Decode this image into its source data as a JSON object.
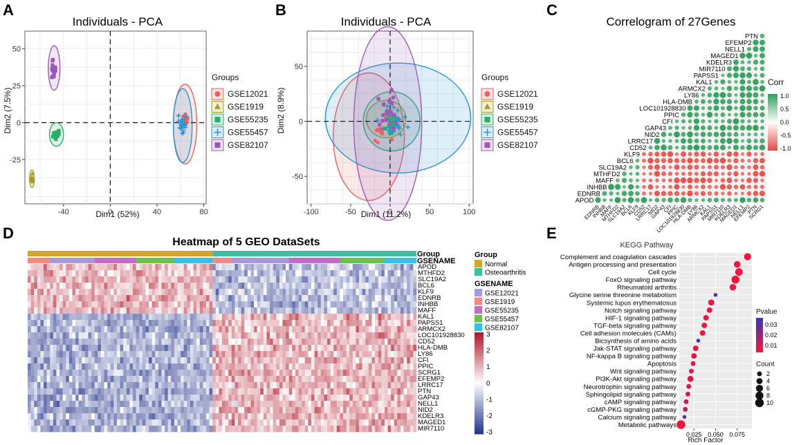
{
  "panels": {
    "a": "A",
    "b": "B",
    "c": "C",
    "d": "D",
    "e": "E"
  },
  "pca_palette": [
    "#e8625f",
    "#a39b27",
    "#27ae6b",
    "#2a96d6",
    "#9b59b6"
  ],
  "chart_data": [
    {
      "type": "scatter",
      "panel": "A",
      "title": "Individuals - PCA",
      "xlabel": "Dim1 (52%)",
      "ylabel": "Dim2 (7.5%)",
      "xlim": [
        -73,
        82
      ],
      "ylim": [
        -55,
        62
      ],
      "xticks": [
        "-40",
        "0",
        "40",
        "80"
      ],
      "xtick_values": [
        -40,
        0,
        40,
        80
      ],
      "yticks": [
        "50",
        "25",
        "0",
        "-25"
      ],
      "ytick_values": [
        50,
        25,
        0,
        -25
      ],
      "legend_title": "Groups",
      "series": [
        {
          "name": "GSE12021",
          "marker": "circle",
          "center": [
            65,
            3
          ],
          "spread": [
            4,
            9
          ],
          "n": 10
        },
        {
          "name": "GSE1919",
          "marker": "triangle",
          "center": [
            -67,
            -38
          ],
          "spread": [
            1,
            4
          ],
          "n": 8
        },
        {
          "name": "GSE55235",
          "marker": "square",
          "center": [
            -46,
            -8
          ],
          "spread": [
            4,
            4
          ],
          "n": 16
        },
        {
          "name": "GSE55457",
          "marker": "plus",
          "center": [
            62,
            -1
          ],
          "spread": [
            5,
            11
          ],
          "n": 20
        },
        {
          "name": "GSE82107",
          "marker": "square",
          "center": [
            -48,
            36
          ],
          "spread": [
            3,
            9
          ],
          "n": 12
        }
      ],
      "ellipses": [
        {
          "group": "GSE12021",
          "center": [
            64,
            -1
          ],
          "radius": [
            10,
            27
          ]
        },
        {
          "group": "GSE1919",
          "center": [
            -67,
            -38
          ],
          "radius": [
            2,
            6
          ]
        },
        {
          "group": "GSE55235",
          "center": [
            -46,
            -8
          ],
          "radius": [
            6,
            8
          ]
        },
        {
          "group": "GSE55457",
          "center": [
            62,
            -2
          ],
          "radius": [
            8,
            25
          ]
        },
        {
          "group": "GSE82107",
          "center": [
            -48,
            37
          ],
          "radius": [
            5,
            15
          ]
        }
      ]
    },
    {
      "type": "scatter",
      "panel": "B",
      "title": "Individuals - PCA",
      "xlabel": "Dim1 (11.2%)",
      "ylabel": "Dim2 (8.9%)",
      "xlim": [
        -105,
        105
      ],
      "ylim": [
        -75,
        82
      ],
      "xticks": [
        "-100",
        "-50",
        "0",
        "50",
        "100"
      ],
      "xtick_values": [
        -100,
        -50,
        0,
        50,
        100
      ],
      "yticks": [
        "50",
        "0",
        "-50"
      ],
      "ytick_values": [
        50,
        0,
        -50
      ],
      "legend_title": "Groups",
      "series": [
        {
          "name": "GSE12021",
          "marker": "circle",
          "center": [
            -12,
            -8
          ],
          "spread": [
            18,
            22
          ],
          "n": 10
        },
        {
          "name": "GSE1919",
          "marker": "triangle",
          "center": [
            0,
            4
          ],
          "spread": [
            12,
            10
          ],
          "n": 10
        },
        {
          "name": "GSE55235",
          "marker": "square",
          "center": [
            3,
            -2
          ],
          "spread": [
            14,
            12
          ],
          "n": 20
        },
        {
          "name": "GSE55457",
          "marker": "plus",
          "center": [
            5,
            0
          ],
          "spread": [
            32,
            20
          ],
          "n": 22
        },
        {
          "name": "GSE82107",
          "marker": "square",
          "center": [
            -2,
            8
          ],
          "spread": [
            16,
            26
          ],
          "n": 18
        }
      ],
      "ellipses": [
        {
          "group": "GSE12021",
          "center": [
            -27,
            -14
          ],
          "radius": [
            45,
            58
          ]
        },
        {
          "group": "GSE1919",
          "center": [
            -5,
            2
          ],
          "radius": [
            25,
            17
          ]
        },
        {
          "group": "GSE55235",
          "center": [
            2,
            0
          ],
          "radius": [
            36,
            27
          ]
        },
        {
          "group": "GSE55457",
          "center": [
            10,
            3
          ],
          "radius": [
            92,
            50
          ]
        },
        {
          "group": "GSE82107",
          "center": [
            -3,
            -2
          ],
          "radius": [
            43,
            88
          ]
        }
      ]
    },
    {
      "type": "heatmap",
      "panel": "C",
      "title": "Correlogram of 27Genes",
      "genes_top_to_bottom": [
        "PTN",
        "EFEMP2",
        "NELL1",
        "MAGED1",
        "KDELR3",
        "MIR7110",
        "PAPSS1",
        "KAL1",
        "ARMCX2",
        "LY86",
        "HLA-DMB",
        "LOC101928830",
        "PPIC",
        "CFI",
        "GAP43",
        "NID2",
        "LRRC17",
        "CD52",
        "KLF9",
        "BCL6",
        "SLC19A2",
        "MTHFD2",
        "MAFF",
        "INHBB",
        "EDNRB",
        "APOD"
      ],
      "genes_bottom_axis": [
        "EDNRB",
        "INHBB",
        "MAFF",
        "MTHFD2",
        "SLC19A2",
        "BCL6",
        "KLF9",
        "CD52",
        "LRRC17",
        "NID2",
        "GAP43",
        "CFI",
        "PPIC",
        "LOC101928830",
        "HLA-DMB",
        "LY86",
        "ARMCX2",
        "KAL1",
        "PAPSS1",
        "MIR7110",
        "KDELR3",
        "MAGED1",
        "NELL1",
        "EFEMP2",
        "PTN",
        "SCRG1"
      ],
      "legend_title": "Corr",
      "legend_ticks": [
        "1.0",
        "0.5",
        "0.0",
        "-0.5",
        "-1.0"
      ],
      "colors": {
        "pos": "#2f9e5a",
        "neg": "#e64b43",
        "mid": "#ffffff"
      },
      "note": "upper block green (positive), lower-right block red (negative), APOD row green"
    },
    {
      "type": "heatmap",
      "panel": "D",
      "title": "Heatmap of 5 GEO DataSets",
      "annotation_labels": [
        "Group",
        "GSENAME"
      ],
      "genes": [
        "APOD",
        "MTHFD2",
        "SLC19A2",
        "BCL6",
        "KLF9",
        "EDNRB",
        "INHBB",
        "MAFF",
        "KAL1",
        "PAPSS1",
        "ARMCX2",
        "LOC101928830",
        "CD52",
        "HLA-DMB",
        "LY86",
        "CFI",
        "PPIC",
        "SCRG1",
        "EFEMP2",
        "LRRC17",
        "PTN",
        "GAP43",
        "NELL1",
        "NID2",
        "KDELR3",
        "MAGED1",
        "MIR7110"
      ],
      "legend_group_title": "Group",
      "legend_group": [
        {
          "name": "Normal",
          "color": "#d4a42f"
        },
        {
          "name": "Osteoarthritis",
          "color": "#3fbfa0"
        }
      ],
      "legend_gse_title": "GSENAME",
      "legend_gse": [
        {
          "name": "GSE12021",
          "color": "#a79ad8"
        },
        {
          "name": "GSE1919",
          "color": "#f08a85"
        },
        {
          "name": "GSE55235",
          "color": "#c46bc9"
        },
        {
          "name": "GSE55457",
          "color": "#6ec04e"
        },
        {
          "name": "GSE82107",
          "color": "#37c1e8"
        }
      ],
      "scale_ticks": [
        "3",
        "2",
        "1",
        "0",
        "-1",
        "-2",
        "-3"
      ],
      "group_split": {
        "normal": 58,
        "oa": 64
      },
      "gse_blocks_normal": [
        [
          "GSE1919",
          7
        ],
        [
          "GSE12021",
          14
        ],
        [
          "GSE55235",
          13
        ],
        [
          "GSE55457",
          12
        ],
        [
          "GSE82107",
          12
        ]
      ],
      "gse_blocks_oa": [
        [
          "GSE1919",
          6
        ],
        [
          "GSE12021",
          18
        ],
        [
          "GSE55235",
          16
        ],
        [
          "GSE55457",
          14
        ],
        [
          "GSE82107",
          10
        ]
      ]
    },
    {
      "type": "scatter",
      "panel": "E",
      "title": "KEGG Pathway",
      "xlabel": "Rich Factor",
      "xlim": [
        0.008,
        0.092
      ],
      "xticks": [
        "0.025",
        "0.050",
        "0.075"
      ],
      "xtick_values": [
        0.025,
        0.05,
        0.075
      ],
      "pathways": [
        "Complement and coagulation cascades",
        "Antigen processing and presentation",
        "Cell cycle",
        "FoxO signaling pathway",
        "Rheumatoid arthritis",
        "Glycine serine threonine metabolism",
        "Systemic lupus erythematosus",
        "Notch signaling pathway",
        "HIF-1 signaling pathway",
        "TGF-beta signaling pathway",
        "Cell adhesion molecules (CAMs)",
        "Bicsynthesis of amino acids",
        "Jak-STAT signaling pathway",
        "NF-kappa B signaling pathway",
        "Apoptosis",
        "Wnt signaling pathway",
        "PI3K-Akt signaling pathway",
        "Neurotrophin signaling pathway",
        "Sphingolipid signaling pathway",
        "cAMP signaling pathway",
        "cGMP-PKG signaling pathway",
        "Calcium signaling pathway",
        "Metabolic pathways"
      ],
      "rich_factor": [
        0.087,
        0.075,
        0.077,
        0.073,
        0.07,
        0.05,
        0.045,
        0.043,
        0.039,
        0.037,
        0.035,
        0.03,
        0.027,
        0.025,
        0.024,
        0.022,
        0.021,
        0.019,
        0.018,
        0.016,
        0.015,
        0.014,
        0.01
      ],
      "count": [
        6,
        5,
        7,
        8,
        5,
        1,
        4,
        3,
        3,
        3,
        3,
        1,
        3,
        3,
        2,
        2,
        4,
        2,
        2,
        2,
        2,
        1,
        10
      ],
      "pvalue": [
        0.001,
        0.001,
        0.001,
        0.001,
        0.001,
        0.03,
        0.002,
        0.002,
        0.003,
        0.003,
        0.003,
        0.035,
        0.004,
        0.004,
        0.006,
        0.006,
        0.005,
        0.008,
        0.008,
        0.01,
        0.012,
        0.032,
        0.001
      ],
      "legend_pvalue_title": "Pvalue",
      "legend_pvalue_ticks": [
        "0.03",
        "0.02",
        "0.01"
      ],
      "legend_count_title": "Count",
      "legend_count_values": [
        "2",
        "4",
        "6",
        "8",
        "10"
      ]
    }
  ]
}
